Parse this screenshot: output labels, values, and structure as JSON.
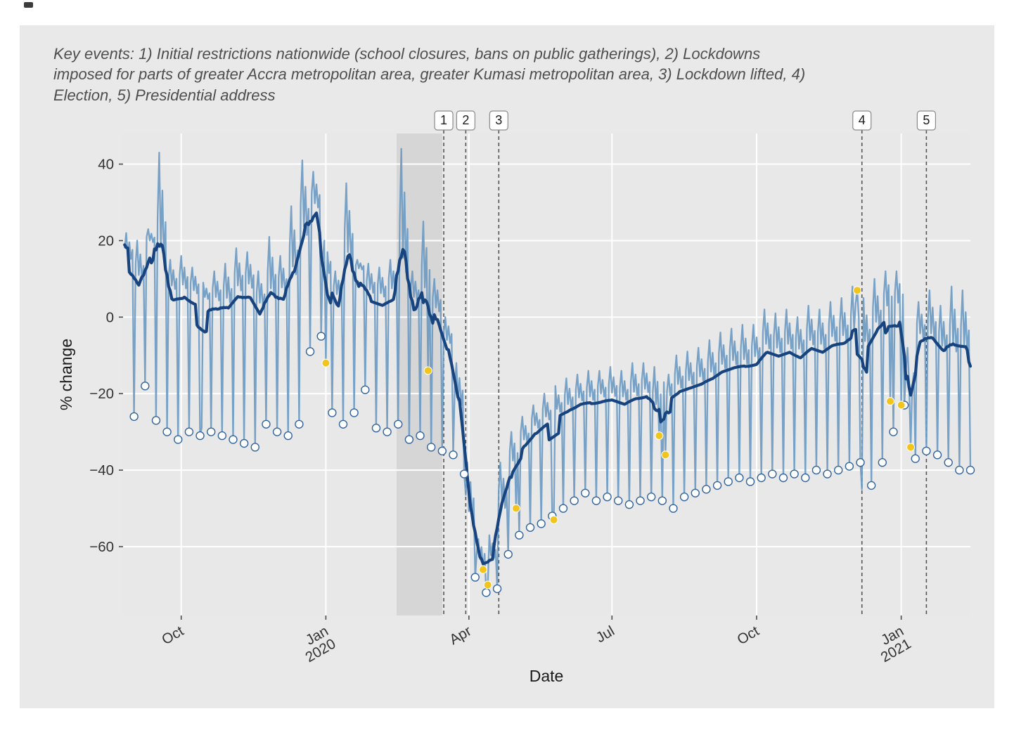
{
  "figure": {
    "caption": "Key events: 1) Initial restrictions nationwide (school closures, bans on public gatherings), 2) Lockdowns imposed for parts of greater Accra metropolitan area, greater Kumasi metropolitan area, 3) Lockdown lifted, 4) Election, 5) Presidential address"
  },
  "chart_data": {
    "type": "line",
    "xlabel": "Date",
    "ylabel": "% change",
    "ylim": [
      -78,
      48
    ],
    "yticks": [
      40,
      20,
      0,
      -20,
      -40,
      -60
    ],
    "x_domain": [
      "2019-08-25",
      "2021-02-14"
    ],
    "xticks": [
      {
        "date": "2019-10-01",
        "lines": [
          "Oct"
        ]
      },
      {
        "date": "2020-01-01",
        "lines": [
          "Jan",
          "2020"
        ]
      },
      {
        "date": "2020-04-01",
        "lines": [
          "Apr"
        ]
      },
      {
        "date": "2020-07-01",
        "lines": [
          "Jul"
        ]
      },
      {
        "date": "2020-10-01",
        "lines": [
          "Oct"
        ]
      },
      {
        "date": "2021-01-01",
        "lines": [
          "Jan",
          "2021"
        ]
      }
    ],
    "baseline_shading": {
      "start": "2020-02-15",
      "end": "2020-03-15"
    },
    "events": [
      {
        "label": "1",
        "date": "2020-03-16"
      },
      {
        "label": "2",
        "date": "2020-03-30"
      },
      {
        "label": "3",
        "date": "2020-04-20"
      },
      {
        "label": "4",
        "date": "2020-12-07"
      },
      {
        "label": "5",
        "date": "2021-01-17"
      }
    ],
    "weekly_columns": [
      "week_start",
      "rolling_mean",
      "weekday_peak",
      "sunday_low"
    ],
    "weekly": [
      [
        "2019-08-26",
        14,
        22,
        -26
      ],
      [
        "2019-09-02",
        8,
        20,
        -18
      ],
      [
        "2019-09-09",
        19,
        23,
        -27
      ],
      [
        "2019-09-16",
        10,
        43,
        -30
      ],
      [
        "2019-09-23",
        6,
        15,
        -32
      ],
      [
        "2019-09-30",
        6,
        16,
        -30
      ],
      [
        "2019-10-07",
        5,
        13,
        -31
      ],
      [
        "2019-10-14",
        4,
        9,
        -30
      ],
      [
        "2019-10-21",
        3,
        12,
        -31
      ],
      [
        "2019-10-28",
        2,
        14,
        -32
      ],
      [
        "2019-11-04",
        5,
        18,
        -33
      ],
      [
        "2019-11-11",
        6,
        17,
        -34
      ],
      [
        "2019-11-18",
        1,
        12,
        -28
      ],
      [
        "2019-11-25",
        3,
        21,
        -30
      ],
      [
        "2019-12-02",
        5,
        16,
        -31
      ],
      [
        "2019-12-09",
        8,
        29,
        -28
      ],
      [
        "2019-12-16",
        18,
        41,
        -9
      ],
      [
        "2019-12-23",
        27,
        38,
        -5
      ],
      [
        "2019-12-30",
        10,
        20,
        -25
      ],
      [
        "2020-01-06",
        4,
        12,
        -28
      ],
      [
        "2020-01-13",
        11,
        35,
        -25
      ],
      [
        "2020-01-20",
        12,
        15,
        -19
      ],
      [
        "2020-01-27",
        5,
        14,
        -29
      ],
      [
        "2020-02-03",
        4,
        13,
        -30
      ],
      [
        "2020-02-10",
        5,
        15,
        -28
      ],
      [
        "2020-02-17",
        6,
        44,
        -32
      ],
      [
        "2020-02-24",
        3,
        12,
        -31
      ],
      [
        "2020-03-02",
        2,
        25,
        -34
      ],
      [
        "2020-03-09",
        0,
        10,
        -35
      ],
      [
        "2020-03-16",
        -8,
        0,
        -36
      ],
      [
        "2020-03-23",
        -25,
        -12,
        -41
      ],
      [
        "2020-03-30",
        -55,
        -38,
        -68
      ],
      [
        "2020-04-06",
        -65,
        -58,
        -72
      ],
      [
        "2020-04-13",
        -64,
        -57,
        -71
      ],
      [
        "2020-04-20",
        -52,
        -38,
        -62
      ],
      [
        "2020-04-27",
        -40,
        -30,
        -57
      ],
      [
        "2020-05-04",
        -34,
        -26,
        -55
      ],
      [
        "2020-05-11",
        -30,
        -23,
        -54
      ],
      [
        "2020-05-18",
        -28,
        -20,
        -52
      ],
      [
        "2020-05-25",
        -26,
        -18,
        -50
      ],
      [
        "2020-06-01",
        -25,
        -16,
        -48
      ],
      [
        "2020-06-08",
        -23,
        -15,
        -46
      ],
      [
        "2020-06-15",
        -23,
        -14,
        -48
      ],
      [
        "2020-06-22",
        -22,
        -14,
        -47
      ],
      [
        "2020-06-29",
        -22,
        -13,
        -48
      ],
      [
        "2020-07-06",
        -23,
        -14,
        -49
      ],
      [
        "2020-07-13",
        -22,
        -12,
        -48
      ],
      [
        "2020-07-20",
        -21,
        -12,
        -47
      ],
      [
        "2020-07-27",
        -26,
        -13,
        -48
      ],
      [
        "2020-08-03",
        -22,
        -12,
        -50
      ],
      [
        "2020-08-10",
        -20,
        -10,
        -47
      ],
      [
        "2020-08-17",
        -19,
        -9,
        -46
      ],
      [
        "2020-08-24",
        -18,
        -8,
        -45
      ],
      [
        "2020-08-31",
        -17,
        -6,
        -44
      ],
      [
        "2020-09-07",
        -15,
        -4,
        -43
      ],
      [
        "2020-09-14",
        -14,
        -3,
        -42
      ],
      [
        "2020-09-21",
        -14,
        -2,
        -43
      ],
      [
        "2020-09-28",
        -13,
        -2,
        -42
      ],
      [
        "2020-10-05",
        -10,
        2,
        -41
      ],
      [
        "2020-10-12",
        -11,
        1,
        -42
      ],
      [
        "2020-10-19",
        -10,
        2,
        -41
      ],
      [
        "2020-10-26",
        -11,
        0,
        -42
      ],
      [
        "2020-11-02",
        -9,
        3,
        -40
      ],
      [
        "2020-11-09",
        -10,
        2,
        -41
      ],
      [
        "2020-11-16",
        -8,
        4,
        -40
      ],
      [
        "2020-11-23",
        -8,
        5,
        -39
      ],
      [
        "2020-11-30",
        -7,
        8,
        -38
      ],
      [
        "2020-12-07",
        -10,
        5,
        -44
      ],
      [
        "2020-12-14",
        -5,
        10,
        -38
      ],
      [
        "2020-12-21",
        0,
        12,
        -30
      ],
      [
        "2020-12-28",
        1,
        12,
        -23
      ],
      [
        "2021-01-04",
        -20,
        -8,
        -37
      ],
      [
        "2021-01-11",
        -7,
        4,
        -35
      ],
      [
        "2021-01-18",
        -8,
        7,
        -36
      ],
      [
        "2021-01-25",
        -11,
        3,
        -38
      ],
      [
        "2021-02-01",
        -12,
        8,
        -40
      ],
      [
        "2021-02-08",
        -12,
        7,
        -40
      ]
    ],
    "weekday_pattern": [
      0.5,
      1,
      0.25,
      0.7,
      0.15,
      0.45
    ],
    "holidays": [
      {
        "date": "2020-01-01",
        "value": -12
      },
      {
        "date": "2020-03-06",
        "value": -14
      },
      {
        "date": "2020-04-10",
        "value": -66
      },
      {
        "date": "2020-04-13",
        "value": -70
      },
      {
        "date": "2020-05-01",
        "value": -50
      },
      {
        "date": "2020-05-25",
        "value": -53
      },
      {
        "date": "2020-07-31",
        "value": -31
      },
      {
        "date": "2020-08-04",
        "value": -36
      },
      {
        "date": "2020-12-04",
        "value": 7
      },
      {
        "date": "2020-12-25",
        "value": -22
      },
      {
        "date": "2021-01-01",
        "value": -23
      },
      {
        "date": "2021-01-07",
        "value": -34
      }
    ],
    "overrides": [
      {
        "date": "2019-10-14",
        "value": -29
      },
      {
        "date": "2020-12-07",
        "value": -45
      }
    ],
    "grid": true,
    "legend": "none",
    "colors": {
      "panel": "#e8e8e8",
      "grid": "#ffffff",
      "shading": "#d4d4d4",
      "daily_line": "#6c9ac2",
      "rolling_line": "#17437e",
      "weekly_low_fill": "#ffffff",
      "weekly_low_stroke": "#33659e",
      "holiday_fill": "#f2c51d",
      "event_line": "#555555",
      "event_box_border": "#8a8a8a",
      "text_dark": "#1a1a1a",
      "tick_text": "#333333"
    }
  }
}
